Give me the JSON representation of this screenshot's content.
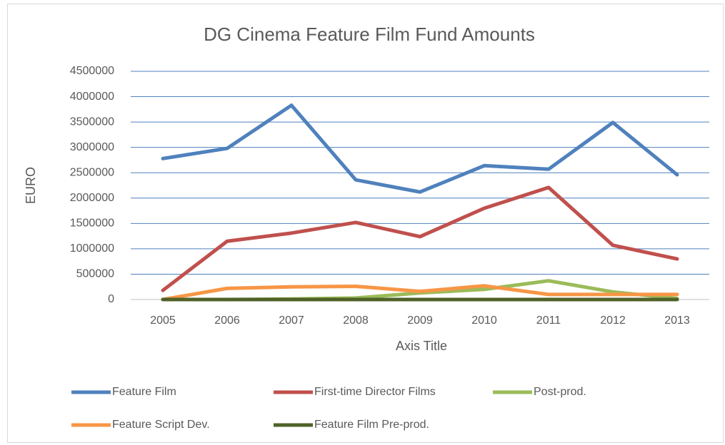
{
  "chart_data": {
    "type": "line",
    "title": "DG Cinema Feature Film Fund Amounts",
    "x_label": "Axis Title",
    "y_label": "EURO",
    "categories": [
      "2005",
      "2006",
      "2007",
      "2008",
      "2009",
      "2010",
      "2011",
      "2012",
      "2013"
    ],
    "series": [
      {
        "name": "Feature Film",
        "color": "#4f81bd",
        "values": [
          2780000,
          2980000,
          3830000,
          2360000,
          2120000,
          2640000,
          2570000,
          3490000,
          2460000
        ]
      },
      {
        "name": "First-time Director Films",
        "color": "#c0504d",
        "values": [
          180000,
          1150000,
          1310000,
          1520000,
          1240000,
          1800000,
          2210000,
          1070000,
          800000
        ]
      },
      {
        "name": "Post-prod.",
        "color": "#9bbb59",
        "values": [
          0,
          0,
          10000,
          30000,
          130000,
          200000,
          370000,
          150000,
          20000
        ]
      },
      {
        "name": "Feature Script Dev.",
        "color": "#f79646",
        "values": [
          0,
          220000,
          250000,
          260000,
          160000,
          270000,
          100000,
          100000,
          100000
        ]
      },
      {
        "name": "Feature Film Pre-prod.",
        "color": "#4f6228",
        "values": [
          0,
          0,
          0,
          0,
          0,
          0,
          0,
          0,
          0
        ]
      }
    ],
    "ylim": [
      0,
      4500000
    ],
    "yticks": [
      0,
      500000,
      1000000,
      1500000,
      2000000,
      2500000,
      3000000,
      3500000,
      4000000,
      4500000
    ],
    "grid": true,
    "legend": "bottom"
  }
}
